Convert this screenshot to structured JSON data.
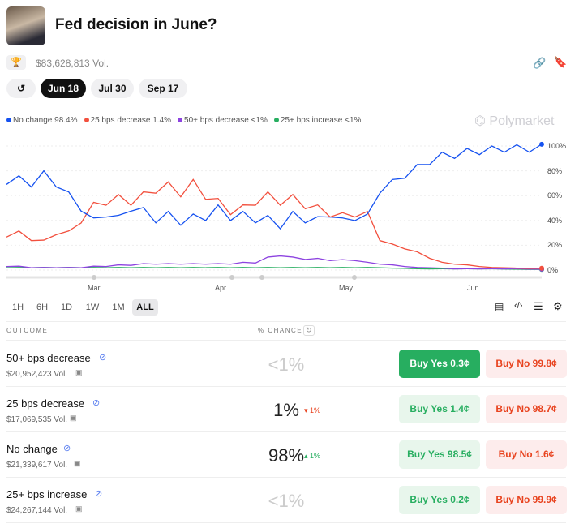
{
  "header": {
    "title": "Fed decision in June?",
    "volume": "$83,628,813 Vol."
  },
  "dates": [
    "Jun 18",
    "Jul 30",
    "Sep 17"
  ],
  "legend": [
    {
      "label": "No change 98.4%",
      "color": "#1652f0"
    },
    {
      "label": "25 bps decrease 1.4%",
      "color": "#f2503e"
    },
    {
      "label": "50+ bps decrease <1%",
      "color": "#8d43e0"
    },
    {
      "label": "25+ bps increase <1%",
      "color": "#27ae60"
    }
  ],
  "brand": "Polymarket",
  "chart_data": {
    "type": "line",
    "ylim": [
      0,
      100
    ],
    "yticks": [
      "100%",
      "80%",
      "60%",
      "40%",
      "20%",
      "0%"
    ],
    "xticks": [
      "Mar",
      "Apr",
      "May",
      "Jun"
    ],
    "series": [
      {
        "name": "No change",
        "color": "#1652f0",
        "values": [
          72,
          73,
          70,
          77,
          70,
          60,
          50,
          40,
          45,
          42,
          50,
          48,
          40,
          45,
          38,
          43,
          42,
          50,
          42,
          45,
          40,
          42,
          35,
          45,
          40,
          41,
          45,
          40,
          42,
          43,
          65,
          70,
          77,
          82,
          88,
          92,
          93,
          95,
          96,
          97,
          98,
          98,
          98,
          98.4
        ]
      },
      {
        "name": "25 bps decrease",
        "color": "#f2503e",
        "values": [
          28,
          30,
          25,
          23,
          30,
          30,
          40,
          52,
          55,
          58,
          55,
          60,
          65,
          68,
          62,
          70,
          60,
          55,
          47,
          50,
          55,
          60,
          55,
          58,
          52,
          50,
          45,
          44,
          45,
          45,
          25,
          20,
          18,
          14,
          10,
          6,
          5,
          4,
          3,
          2,
          2,
          1.5,
          1.4,
          1.4
        ]
      },
      {
        "name": "50+ bps decrease",
        "color": "#8d43e0",
        "values": [
          3,
          3,
          2,
          2,
          2,
          2,
          2,
          3,
          3,
          4,
          4,
          5,
          5,
          5,
          5,
          5,
          5,
          5,
          5,
          6,
          6,
          10,
          12,
          10,
          9,
          9,
          8,
          8,
          8,
          6,
          5,
          4,
          3,
          2,
          2,
          1.5,
          1,
          1,
          1,
          1,
          1,
          1,
          0.8,
          0.7
        ]
      },
      {
        "name": "25+ bps increase",
        "color": "#27ae60",
        "values": [
          2,
          2,
          2,
          2,
          2,
          2,
          2,
          2,
          2,
          2,
          2,
          2,
          2,
          2,
          2,
          2,
          2,
          2,
          2,
          2,
          2,
          2,
          2,
          2,
          2,
          2,
          2,
          2,
          2,
          2,
          2,
          1.5,
          1.5,
          1,
          1,
          1,
          1,
          1,
          1,
          1,
          0.8,
          0.6,
          0.5,
          0.5
        ]
      }
    ]
  },
  "timeframes": [
    "1H",
    "6H",
    "1D",
    "1W",
    "1M",
    "ALL"
  ],
  "table": {
    "col_outcome": "OUTCOME",
    "col_chance": "% CHANCE",
    "rows": [
      {
        "name": "50+ bps decrease",
        "vol": "$20,952,423 Vol.",
        "pct": "<1%",
        "delta": "",
        "yes": "Buy Yes 0.3¢",
        "no": "Buy No 99.8¢"
      },
      {
        "name": "25 bps decrease",
        "vol": "$17,069,535 Vol.",
        "pct": "1%",
        "delta": "▾ 1%",
        "yes": "Buy Yes 1.4¢",
        "no": "Buy No 98.7¢"
      },
      {
        "name": "No change",
        "vol": "$21,339,617 Vol.",
        "pct": "98%",
        "delta": "▴ 1%",
        "yes": "Buy Yes 98.5¢",
        "no": "Buy No 1.6¢"
      },
      {
        "name": "25+ bps increase",
        "vol": "$24,267,144 Vol.",
        "pct": "<1%",
        "delta": "",
        "yes": "Buy Yes 0.2¢",
        "no": "Buy No 99.9¢"
      }
    ]
  }
}
